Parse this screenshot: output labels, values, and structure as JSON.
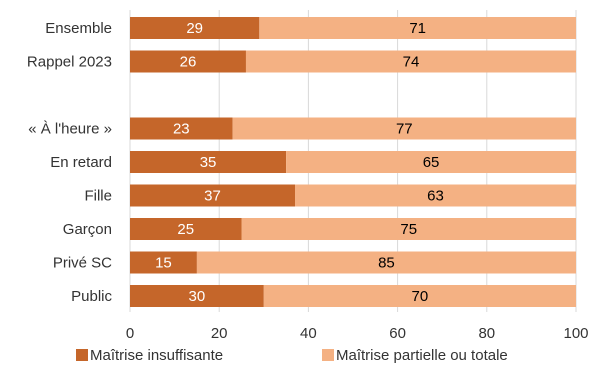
{
  "chart_data": {
    "type": "bar",
    "orientation": "horizontal",
    "stacked": true,
    "categories": [
      "Ensemble",
      "Rappel 2023",
      "",
      "« À l'heure »",
      "En retard",
      "Fille",
      "Garçon",
      "Privé SC",
      "Public"
    ],
    "series": [
      {
        "name": "Maîtrise insuffisante",
        "color": "#C5662A",
        "label_color": "#ffffff",
        "values": [
          29,
          26,
          null,
          23,
          35,
          37,
          25,
          15,
          30
        ]
      },
      {
        "name": "Maîtrise partielle ou totale",
        "color": "#F4B183",
        "label_color": "#000000",
        "values": [
          71,
          74,
          null,
          77,
          65,
          63,
          75,
          85,
          70
        ]
      }
    ],
    "xlim": [
      0,
      100
    ],
    "xticks": [
      0,
      20,
      40,
      60,
      80,
      100
    ],
    "grid": true,
    "legend_position": "bottom",
    "title": "",
    "xlabel": "",
    "ylabel": ""
  }
}
